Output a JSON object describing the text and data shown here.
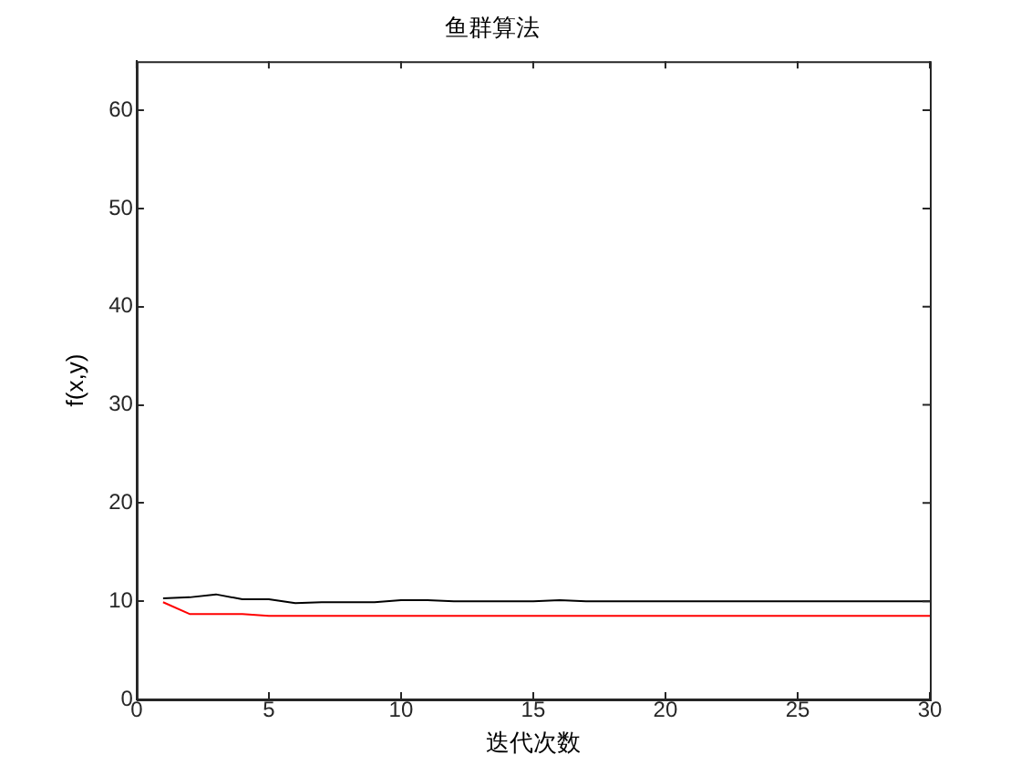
{
  "chart_data": {
    "type": "line",
    "title": "鱼群算法",
    "xlabel": "迭代次数",
    "ylabel": "f(x,y)",
    "x": [
      1,
      2,
      3,
      4,
      5,
      6,
      7,
      8,
      9,
      10,
      11,
      12,
      13,
      14,
      15,
      16,
      17,
      18,
      19,
      20,
      21,
      22,
      23,
      24,
      25,
      26,
      27,
      28,
      29,
      30
    ],
    "series": [
      {
        "color": "#000000",
        "values": [
          10.3,
          10.4,
          10.7,
          10.2,
          10.2,
          9.8,
          9.9,
          9.9,
          9.9,
          10.1,
          10.1,
          10.0,
          10.0,
          10.0,
          10.0,
          10.1,
          10.0,
          10.0,
          10.0,
          10.0,
          10.0,
          10.0,
          10.0,
          10.0,
          10.0,
          10.0,
          10.0,
          10.0,
          10.0,
          10.0
        ]
      },
      {
        "color": "#ff0000",
        "values": [
          9.9,
          8.7,
          8.7,
          8.7,
          8.5,
          8.5,
          8.5,
          8.5,
          8.5,
          8.5,
          8.5,
          8.5,
          8.5,
          8.5,
          8.5,
          8.5,
          8.5,
          8.5,
          8.5,
          8.5,
          8.5,
          8.5,
          8.5,
          8.5,
          8.5,
          8.5,
          8.5,
          8.5,
          8.5,
          8.5
        ]
      }
    ],
    "xlim": [
      0,
      30
    ],
    "xticks": [
      0,
      5,
      10,
      15,
      20,
      25,
      30
    ],
    "ylim": [
      0,
      65
    ],
    "yticks": [
      0,
      10,
      20,
      30,
      40,
      50,
      60
    ],
    "grid": false,
    "legend": false,
    "marker": "none",
    "line_style": "solid"
  }
}
